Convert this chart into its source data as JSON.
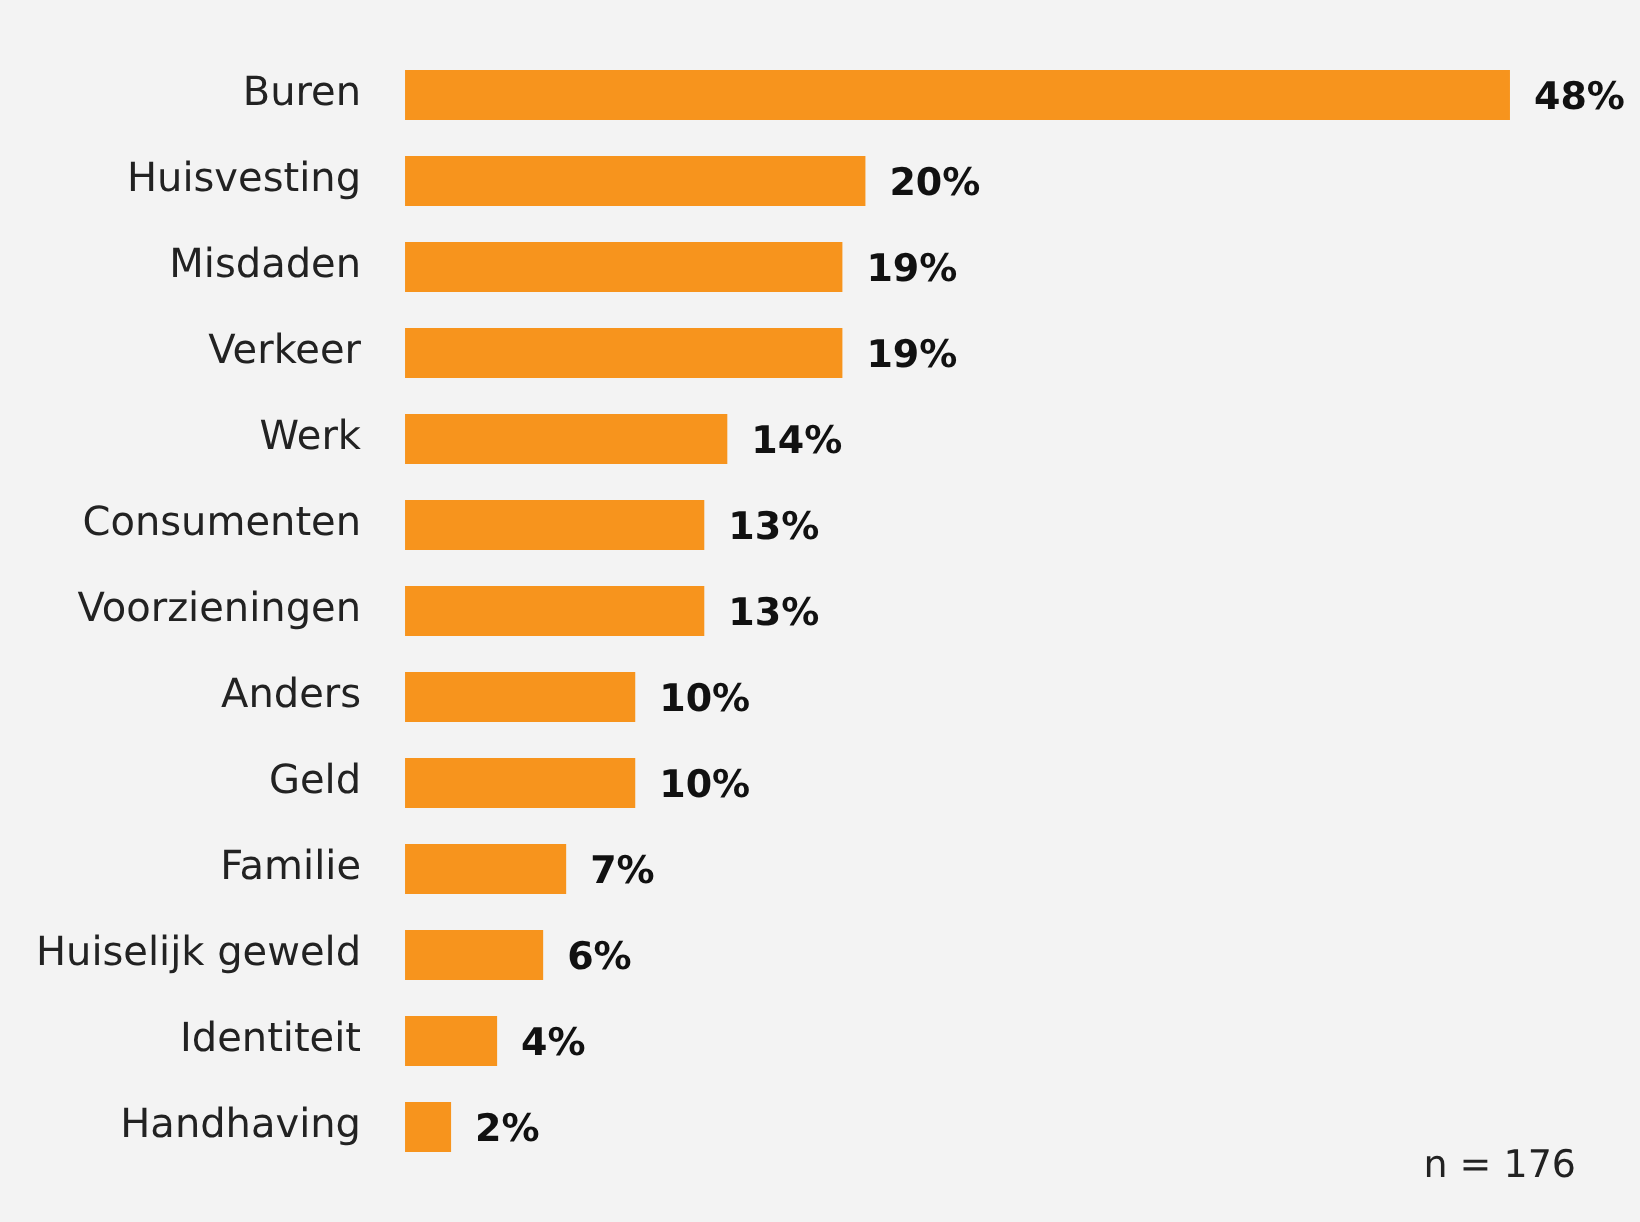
{
  "chart_data": {
    "type": "bar",
    "orientation": "horizontal",
    "categories": [
      "Buren",
      "Huisvesting",
      "Misdaden",
      "Verkeer",
      "Werk",
      "Consumenten",
      "Voorzieningen",
      "Anders",
      "Geld",
      "Familie",
      "Huiselijk geweld",
      "Identiteit",
      "Handhaving"
    ],
    "values": [
      48,
      20,
      19,
      19,
      14,
      13,
      13,
      10,
      10,
      7,
      6,
      4,
      2
    ],
    "value_labels": [
      "48%",
      "20%",
      "19%",
      "19%",
      "14%",
      "13%",
      "13%",
      "10%",
      "10%",
      "7%",
      "6%",
      "4%",
      "2%"
    ],
    "color": "#f7941d",
    "legend": false,
    "tick_labels": "y",
    "annotations": [
      "n = 176"
    ]
  }
}
